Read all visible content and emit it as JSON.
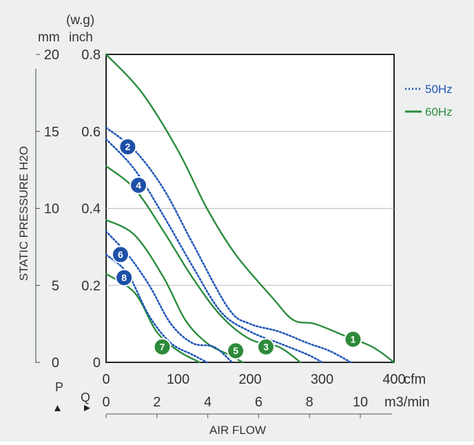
{
  "colors": {
    "hz50": "#1f56b8",
    "hz60": "#2a8c3d",
    "axis": "#222222",
    "grid": "#bbbbbb",
    "text": "#333333",
    "bg": "#eef0f0"
  },
  "labels": {
    "wg": "(w.g)",
    "mm": "mm",
    "inch": "inch",
    "ylabel": "STATIC PRESSURE H2O",
    "xlabel": "AIR FLOW",
    "cfm": "cfm",
    "m3min": "m3/min",
    "p": "P",
    "q": "Q"
  },
  "legend": [
    {
      "label": "50Hz",
      "style": "dotted",
      "color": "#1f56b8"
    },
    {
      "label": "60Hz",
      "style": "solid",
      "color": "#2a8c3d"
    }
  ],
  "chart_data": {
    "type": "line",
    "xlabel": "AIR FLOW",
    "ylabel": "STATIC PRESSURE H2O",
    "xlim": [
      0,
      400
    ],
    "ylim": [
      0,
      0.8
    ],
    "x_ticks_cfm": [
      0,
      100,
      200,
      300,
      400
    ],
    "x_ticks_m3min": [
      0,
      2,
      4,
      6,
      8,
      10
    ],
    "y_ticks_inch": [
      0,
      0.2,
      0.4,
      0.6,
      0.8
    ],
    "y_ticks_mm": [
      0,
      5,
      10,
      15,
      20
    ],
    "grid": "horizontal",
    "legend_position": "right",
    "series": [
      {
        "name": "1",
        "hz": "60Hz",
        "points": [
          [
            0,
            0.8
          ],
          [
            50,
            0.7
          ],
          [
            100,
            0.55
          ],
          [
            140,
            0.4
          ],
          [
            180,
            0.28
          ],
          [
            230,
            0.17
          ],
          [
            260,
            0.11
          ],
          [
            290,
            0.1
          ],
          [
            330,
            0.07
          ],
          [
            370,
            0.04
          ],
          [
            400,
            0
          ]
        ],
        "badge": [
          343,
          0.06
        ]
      },
      {
        "name": "2",
        "hz": "50Hz",
        "points": [
          [
            0,
            0.61
          ],
          [
            40,
            0.55
          ],
          [
            80,
            0.45
          ],
          [
            120,
            0.31
          ],
          [
            170,
            0.14
          ],
          [
            200,
            0.1
          ],
          [
            240,
            0.08
          ],
          [
            280,
            0.05
          ],
          [
            310,
            0.03
          ],
          [
            340,
            0
          ]
        ],
        "badge": [
          30,
          0.56
        ]
      },
      {
        "name": "3",
        "hz": "60Hz",
        "points": [
          [
            0,
            0.51
          ],
          [
            40,
            0.45
          ],
          [
            80,
            0.34
          ],
          [
            120,
            0.22
          ],
          [
            160,
            0.12
          ],
          [
            200,
            0.06
          ],
          [
            240,
            0.04
          ],
          [
            270,
            0
          ]
        ],
        "badge": [
          222,
          0.04
        ]
      },
      {
        "name": "4",
        "hz": "50Hz",
        "points": [
          [
            0,
            0.58
          ],
          [
            40,
            0.5
          ],
          [
            80,
            0.38
          ],
          [
            120,
            0.25
          ],
          [
            160,
            0.13
          ],
          [
            200,
            0.08
          ],
          [
            240,
            0.05
          ],
          [
            280,
            0.02
          ],
          [
            300,
            0
          ]
        ],
        "badge": [
          45,
          0.46
        ]
      },
      {
        "name": "5",
        "hz": "60Hz",
        "points": [
          [
            0,
            0.37
          ],
          [
            40,
            0.33
          ],
          [
            80,
            0.22
          ],
          [
            110,
            0.11
          ],
          [
            140,
            0.05
          ],
          [
            170,
            0.02
          ],
          [
            190,
            0
          ]
        ],
        "badge": [
          180,
          0.03
        ]
      },
      {
        "name": "6",
        "hz": "50Hz",
        "points": [
          [
            0,
            0.34
          ],
          [
            30,
            0.28
          ],
          [
            60,
            0.2
          ],
          [
            90,
            0.1
          ],
          [
            120,
            0.05
          ],
          [
            150,
            0.04
          ],
          [
            175,
            0
          ]
        ],
        "badge": [
          20,
          0.28
        ]
      },
      {
        "name": "7",
        "hz": "60Hz",
        "points": [
          [
            0,
            0.23
          ],
          [
            40,
            0.18
          ],
          [
            70,
            0.08
          ],
          [
            100,
            0.03
          ],
          [
            130,
            0
          ]
        ],
        "badge": [
          78,
          0.04
        ]
      },
      {
        "name": "8",
        "hz": "50Hz",
        "points": [
          [
            0,
            0.28
          ],
          [
            30,
            0.23
          ],
          [
            60,
            0.12
          ],
          [
            90,
            0.05
          ],
          [
            120,
            0.02
          ],
          [
            140,
            0
          ]
        ],
        "badge": [
          25,
          0.22
        ]
      }
    ]
  }
}
